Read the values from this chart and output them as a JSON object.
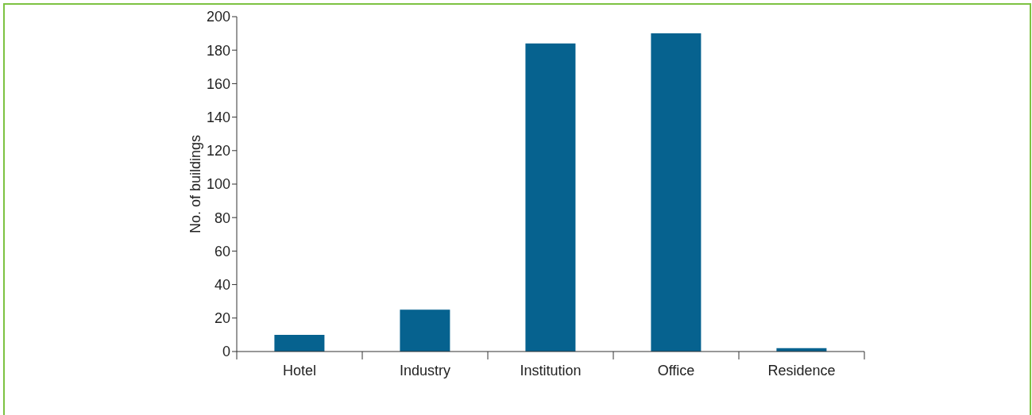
{
  "chart_data": {
    "type": "bar",
    "ylabel": "No. of buildings",
    "categories": [
      "Hotel",
      "Industry",
      "Institution",
      "Office",
      "Residence"
    ],
    "values": [
      10,
      25,
      184,
      190,
      2
    ],
    "color": "#06628f",
    "ylim": [
      0,
      200
    ],
    "yticks": [
      0,
      20,
      40,
      60,
      80,
      100,
      120,
      140,
      160,
      180,
      200
    ],
    "grid": false,
    "legend": false
  }
}
